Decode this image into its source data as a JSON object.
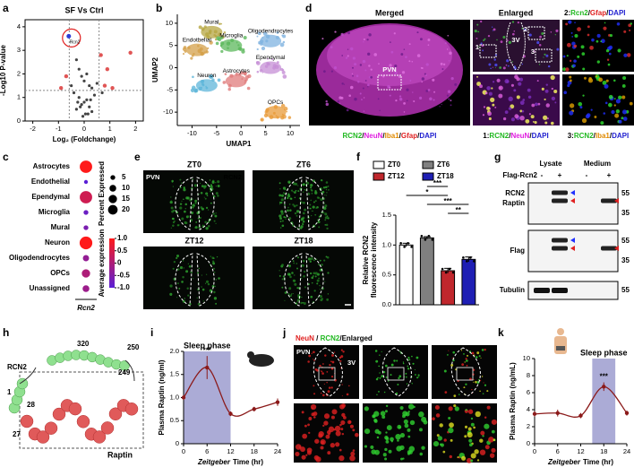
{
  "panel_labels": [
    "a",
    "b",
    "c",
    "d",
    "e",
    "f",
    "g",
    "h",
    "i",
    "j",
    "k"
  ],
  "chart_data": [
    {
      "type": "scatter",
      "title": "SF Vs Ctrl",
      "x_label": "Log₂ (Foldchange)",
      "y_label": "-Log10 P-value",
      "xlim": [
        -2.3,
        2.3
      ],
      "xticks": [
        -2,
        -1,
        0,
        1,
        2
      ],
      "ylim": [
        0,
        4.3
      ],
      "yticks": [
        0,
        1,
        2,
        3,
        4
      ],
      "x_threshold": [
        -0.58,
        0.58
      ],
      "y_threshold": 1.3,
      "color": "#444444",
      "highlight_color": "#e05555",
      "x": [
        -0.3,
        -0.2,
        -0.1,
        0,
        0.1,
        0.2,
        0.3,
        -0.4,
        0.4,
        -0.2,
        0.1,
        0,
        -0.1,
        0.2,
        -0.3,
        0.3,
        0.05,
        -0.05,
        0.15,
        -0.15,
        0.25,
        -0.25,
        0.5,
        -0.5,
        0.65,
        0.8,
        1.1,
        0.9,
        1.8,
        -0.7,
        0.7,
        -0.9
      ],
      "y": [
        2.6,
        2.2,
        1.9,
        1.7,
        2.0,
        1.5,
        1.4,
        1.2,
        1.1,
        1.0,
        0.9,
        0.8,
        0.7,
        0.6,
        0.5,
        0.4,
        0.3,
        0.2,
        0.3,
        0.6,
        0.9,
        0.8,
        1.6,
        1.5,
        2.8,
        1.5,
        1.4,
        2.2,
        2.9,
        1.9,
        1.2,
        1.4
      ],
      "annotations": [
        {
          "text": "Rcn2",
          "x": -0.6,
          "y": 3.6,
          "color": "#2b3bd6"
        }
      ]
    },
    {
      "type": "umap",
      "x_label": "UMAP1",
      "y_label": "UMAP2",
      "xlim": [
        -13,
        12
      ],
      "ylim": [
        -13,
        12
      ],
      "xticks": [
        -10,
        -5,
        0,
        5,
        10
      ],
      "yticks": [
        -10,
        -5,
        0,
        5,
        10
      ],
      "clusters": [
        {
          "name": "Mural",
          "x": -6,
          "y": 8,
          "color": "#b5a642"
        },
        {
          "name": "Endothelial",
          "x": -9,
          "y": 4,
          "color": "#d4a04a"
        },
        {
          "name": "Microglia",
          "x": -2,
          "y": 5,
          "color": "#5cb85c"
        },
        {
          "name": "Oligodendrocytes",
          "x": 6,
          "y": 6,
          "color": "#7fb3e0"
        },
        {
          "name": "Ependymal",
          "x": 6,
          "y": 0,
          "color": "#c58fd6"
        },
        {
          "name": "Neuron",
          "x": -7,
          "y": -4,
          "color": "#5fb6d9"
        },
        {
          "name": "Astrocytes",
          "x": -1,
          "y": -3,
          "color": "#e07b7b"
        },
        {
          "name": "OPCs",
          "x": 7,
          "y": -10,
          "color": "#e89b3a"
        }
      ]
    },
    {
      "type": "dot",
      "categories": [
        "Astrocytes",
        "Endothelial",
        "Ependymal",
        "Microglia",
        "Mural",
        "Neuron",
        "Oligodendrocytes",
        "OPCs",
        "Unassigned"
      ],
      "x_label": "Rcn2",
      "percent_expressed": [
        20,
        2,
        20,
        3,
        3,
        21,
        5,
        9,
        6
      ],
      "average_expression": [
        1,
        -1,
        0.4,
        -0.8,
        -0.6,
        1,
        -0.3,
        0,
        -0.2
      ],
      "size_legend_title": "Percent Expressed",
      "size_ticks": [
        5,
        10,
        15,
        20
      ],
      "color_legend_title": "Average expression",
      "color_range": [
        -1,
        1
      ],
      "color_low": "#5a1fd6",
      "color_high": "#ff1a1a",
      "color_ticks": [
        {
          "value": 1,
          "label": "1.0"
        },
        0.5,
        0,
        -0.5,
        {
          "value": -1,
          "label": "-1.0"
        }
      ]
    },
    {
      "type": "bar",
      "categories": [
        "ZT0",
        "ZT6",
        "ZT12",
        "ZT18"
      ],
      "values": [
        1.0,
        1.12,
        0.57,
        0.76
      ],
      "errors": [
        0.03,
        0.02,
        0.04,
        0.04
      ],
      "colors": [
        "#ffffff",
        "#808080",
        "#c0272d",
        "#1f1fb4"
      ],
      "y_label": [
        "Relative RCN2",
        "fluorescence intensity"
      ],
      "ylim": [
        0,
        1.5
      ],
      "yticks": [
        {
          "value": 0,
          "label": "0.0"
        },
        0.5,
        {
          "value": 1,
          "label": "1.0"
        },
        1.5
      ],
      "significance": [
        {
          "pair": [
            1,
            2
          ],
          "label": "***"
        },
        {
          "pair": [
            0,
            2
          ],
          "label": "*"
        },
        {
          "pair": [
            1,
            3
          ],
          "label": "***"
        },
        {
          "pair": [
            2,
            3
          ],
          "label": "**"
        }
      ]
    },
    {
      "type": "line",
      "x": [
        0,
        6,
        12,
        18,
        24
      ],
      "values": [
        1.0,
        1.65,
        0.65,
        0.75,
        0.9
      ],
      "errors": [
        0.05,
        0.25,
        0.05,
        0.05,
        0.08
      ],
      "color": "#8b1a1a",
      "xlim": [
        0,
        24
      ],
      "xticks": [
        0,
        6,
        12,
        18,
        24
      ],
      "ylim": [
        0,
        2
      ],
      "yticks": [
        0,
        0.5,
        {
          "value": 1,
          "label": "1.0"
        },
        1.5,
        {
          "value": 2,
          "label": "2.0"
        }
      ],
      "x_label_italic": "Zeitgeber",
      "x_label": "Time (hr)",
      "y_label": "Plasma Raptin (ng/ml)",
      "sleep_phase": [
        0,
        12
      ],
      "sleep_phase_label": "Sleep phase",
      "shade_color": "#8f8fc8",
      "stars": [
        {
          "index": 1,
          "label": "***"
        }
      ]
    },
    {
      "type": "line",
      "x": [
        0,
        6,
        12,
        18,
        24
      ],
      "values": [
        3.5,
        3.6,
        3.3,
        6.7,
        3.6
      ],
      "errors": [
        0.3,
        0.4,
        0.3,
        0.5,
        0.3
      ],
      "color": "#8b1a1a",
      "xlim": [
        0,
        24
      ],
      "xticks": [
        0,
        6,
        12,
        18,
        24
      ],
      "ylim": [
        0,
        10
      ],
      "yticks": [
        0,
        2,
        4,
        6,
        8,
        10
      ],
      "x_label_italic": "Zeitgeber",
      "x_label": "Time (hr)",
      "y_label": "Plasma Raptin (ng/mL)",
      "sleep_phase": [
        15,
        21
      ],
      "sleep_phase_label": "Sleep phase",
      "shade_color": "#8f8fc8",
      "stars": [
        {
          "index": 3,
          "label": "***"
        }
      ]
    }
  ],
  "panel_d": {
    "merged_title": "Merged",
    "enlarged_title": "Enlarged",
    "region": "PVN",
    "ventricle": "3V",
    "insets": [
      "1",
      "2",
      "3"
    ],
    "merged_caption": [
      {
        "text": "RCN2",
        "color": "#1fb81f"
      },
      {
        "text": "/",
        "color": "#000"
      },
      {
        "text": "NeuN",
        "color": "#e020e0"
      },
      {
        "text": "/",
        "color": "#000"
      },
      {
        "text": "Iba1",
        "color": "#e08a00"
      },
      {
        "text": "/",
        "color": "#000"
      },
      {
        "text": "Gfap",
        "color": "#e02020"
      },
      {
        "text": "/",
        "color": "#000"
      },
      {
        "text": "DAPI",
        "color": "#2020d0"
      }
    ],
    "inset1_caption": [
      {
        "text": "1:",
        "color": "#000"
      },
      {
        "text": "RCN2",
        "color": "#1fb81f"
      },
      {
        "text": "/",
        "color": "#000"
      },
      {
        "text": "NeuN",
        "color": "#e020e0"
      },
      {
        "text": "/",
        "color": "#000"
      },
      {
        "text": "DAPI",
        "color": "#2020d0"
      }
    ],
    "inset2_caption": [
      {
        "text": "2:",
        "color": "#000"
      },
      {
        "text": "Rcn2",
        "color": "#1fb81f"
      },
      {
        "text": "/",
        "color": "#000"
      },
      {
        "text": "Gfap",
        "color": "#e02020"
      },
      {
        "text": "/",
        "color": "#000"
      },
      {
        "text": "DAPI",
        "color": "#2020d0"
      }
    ],
    "inset3_caption": [
      {
        "text": "3:",
        "color": "#000"
      },
      {
        "text": "RCN2",
        "color": "#1fb81f"
      },
      {
        "text": "/",
        "color": "#000"
      },
      {
        "text": "Iba1",
        "color": "#e08a00"
      },
      {
        "text": "/",
        "color": "#000"
      },
      {
        "text": "DAPI",
        "color": "#2020d0"
      }
    ]
  },
  "panel_e": {
    "timepoints": [
      "ZT0",
      "ZT6",
      "ZT12",
      "ZT18"
    ],
    "region": "PVN",
    "stain": "RCN2"
  },
  "panel_g": {
    "headers": [
      "Lysate",
      "Medium"
    ],
    "construct": "Flag-Rcn2",
    "signs": [
      "-",
      "+",
      "-",
      "+"
    ],
    "rows": [
      {
        "labels": [
          "RCN2",
          "Raptin"
        ],
        "mw": [
          "55",
          "35"
        ]
      },
      {
        "labels": [
          "Flag"
        ],
        "mw": [
          "55",
          "35"
        ]
      },
      {
        "labels": [
          "Tubulin"
        ],
        "mw": [
          "55"
        ]
      }
    ]
  },
  "panel_h": {
    "rcn2": "RCN2",
    "raptin": "Raptin",
    "residues": [
      "320",
      "250",
      "249",
      "1",
      "28",
      "27"
    ]
  },
  "panel_j": {
    "title": [
      {
        "text": "NeuN",
        "color": "#e02020"
      },
      {
        "text": " / ",
        "color": "#000"
      },
      {
        "text": "RCN2",
        "color": "#1fb81f"
      },
      {
        "text": "/Enlarged",
        "color": "#000"
      }
    ],
    "region": "PVN",
    "ventricle": "3V"
  }
}
